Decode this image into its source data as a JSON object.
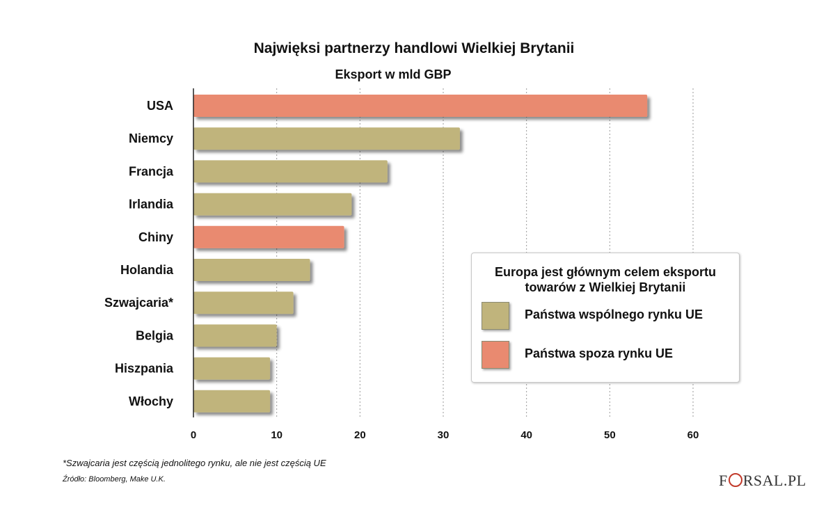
{
  "chart_data": {
    "type": "bar",
    "orientation": "horizontal",
    "title": "Najwięksi partnerzy handlowi Wielkiej Brytanii",
    "subtitle": "Eksport w mld GBP",
    "categories": [
      "USA",
      "Niemcy",
      "Francja",
      "Irlandia",
      "Chiny",
      "Holandia",
      "Szwajcaria*",
      "Belgia",
      "Hiszpania",
      "Włochy"
    ],
    "values": [
      54.5,
      32.0,
      23.3,
      19.0,
      18.1,
      14.0,
      12.0,
      10.0,
      9.2,
      9.2
    ],
    "groups": [
      "non_eu",
      "eu",
      "eu",
      "eu",
      "non_eu",
      "eu",
      "eu",
      "eu",
      "eu",
      "eu"
    ],
    "xlim": [
      0,
      60
    ],
    "xticks": [
      0,
      10,
      20,
      30,
      40,
      50,
      60
    ],
    "grid": "vertical-dotted",
    "legend_position": "bottom-right",
    "legend": {
      "title": "Europa jest głównym celem eksportu towarów z Wielkiej Brytanii",
      "items": [
        {
          "key": "eu",
          "label": "Państwa wspólnego rynku UE",
          "color": "#c0b47c"
        },
        {
          "key": "non_eu",
          "label": "Państwa spoza rynku UE",
          "color": "#e98a70"
        }
      ]
    }
  },
  "footnote": "*Szwajcaria jest częścią jednolitego rynku, ale nie jest częścią UE",
  "source": "Źródło:  Bloomberg,  Make U.K.",
  "logo": {
    "left": "F",
    "right": "RSAL.PL"
  }
}
